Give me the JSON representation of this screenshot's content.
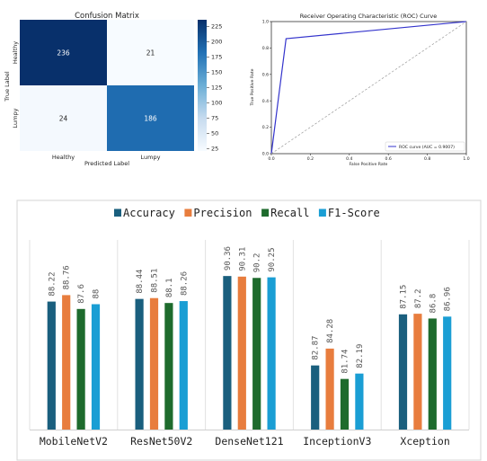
{
  "chart_data": [
    {
      "type": "heatmap",
      "title": "Confusion Matrix",
      "xlabel": "Predicted Label",
      "ylabel": "True Label",
      "x_categories": [
        "Healthy",
        "Lumpy"
      ],
      "y_categories": [
        "Healthy",
        "Lumpy"
      ],
      "values": [
        [
          236,
          21
        ],
        [
          24,
          186
        ]
      ],
      "colorbar": {
        "ticks": [
          25,
          50,
          75,
          100,
          125,
          150,
          175,
          200,
          225
        ],
        "range": [
          21,
          236
        ],
        "colormap": "Blues"
      }
    },
    {
      "type": "line",
      "title": "Receiver Operating Characteristic (ROC) Curve",
      "xlabel": "False Positive Rate",
      "ylabel": "True Positive Rate",
      "xlim": [
        0,
        1
      ],
      "ylim": [
        0,
        1
      ],
      "x_ticks": [
        "0.0",
        "0.2",
        "0.4",
        "0.6",
        "0.8",
        "1.0"
      ],
      "y_ticks": [
        "0.0",
        "0.2",
        "0.4",
        "0.6",
        "0.8",
        "1.0"
      ],
      "series": [
        {
          "name": "ROC curve (AUC = 0.9007)",
          "color": "#3333cc",
          "points": [
            [
              0,
              0
            ],
            [
              0.0755,
              0.8708
            ],
            [
              1,
              1
            ]
          ]
        },
        {
          "color": "#9a9a9a",
          "dashed": true,
          "points": [
            [
              0,
              0
            ],
            [
              1,
              1
            ]
          ]
        }
      ],
      "legend_position": "bottom-right"
    },
    {
      "type": "bar",
      "categories": [
        "MobileNetV2",
        "ResNet50V2",
        "DenseNet121",
        "InceptionV3",
        "Xception"
      ],
      "series": [
        {
          "name": "Accuracy",
          "color": "#1a5f7e",
          "values": [
            88.22,
            88.44,
            90.36,
            82.87,
            87.15
          ]
        },
        {
          "name": "Precision",
          "color": "#e87d3e",
          "values": [
            88.76,
            88.51,
            90.31,
            84.28,
            87.2
          ]
        },
        {
          "name": "Recall",
          "color": "#1e6b2d",
          "values": [
            87.6,
            88.1,
            90.2,
            81.74,
            86.8
          ]
        },
        {
          "name": "F1-Score",
          "color": "#1a9ed4",
          "values": [
            88,
            88.26,
            90.25,
            82.19,
            86.96
          ]
        }
      ],
      "value_labels": [
        [
          "88.22",
          "88.76",
          "87.6",
          "88"
        ],
        [
          "88.44",
          "88.51",
          "88.1",
          "88.26"
        ],
        [
          "90.36",
          "90.31",
          "90.2",
          "90.25"
        ],
        [
          "82.87",
          "84.28",
          "81.74",
          "82.19"
        ],
        [
          "87.15",
          "87.2",
          "86.8",
          "86.96"
        ]
      ],
      "ylim": [
        77.5,
        91.5
      ],
      "legend_position": "top"
    }
  ]
}
